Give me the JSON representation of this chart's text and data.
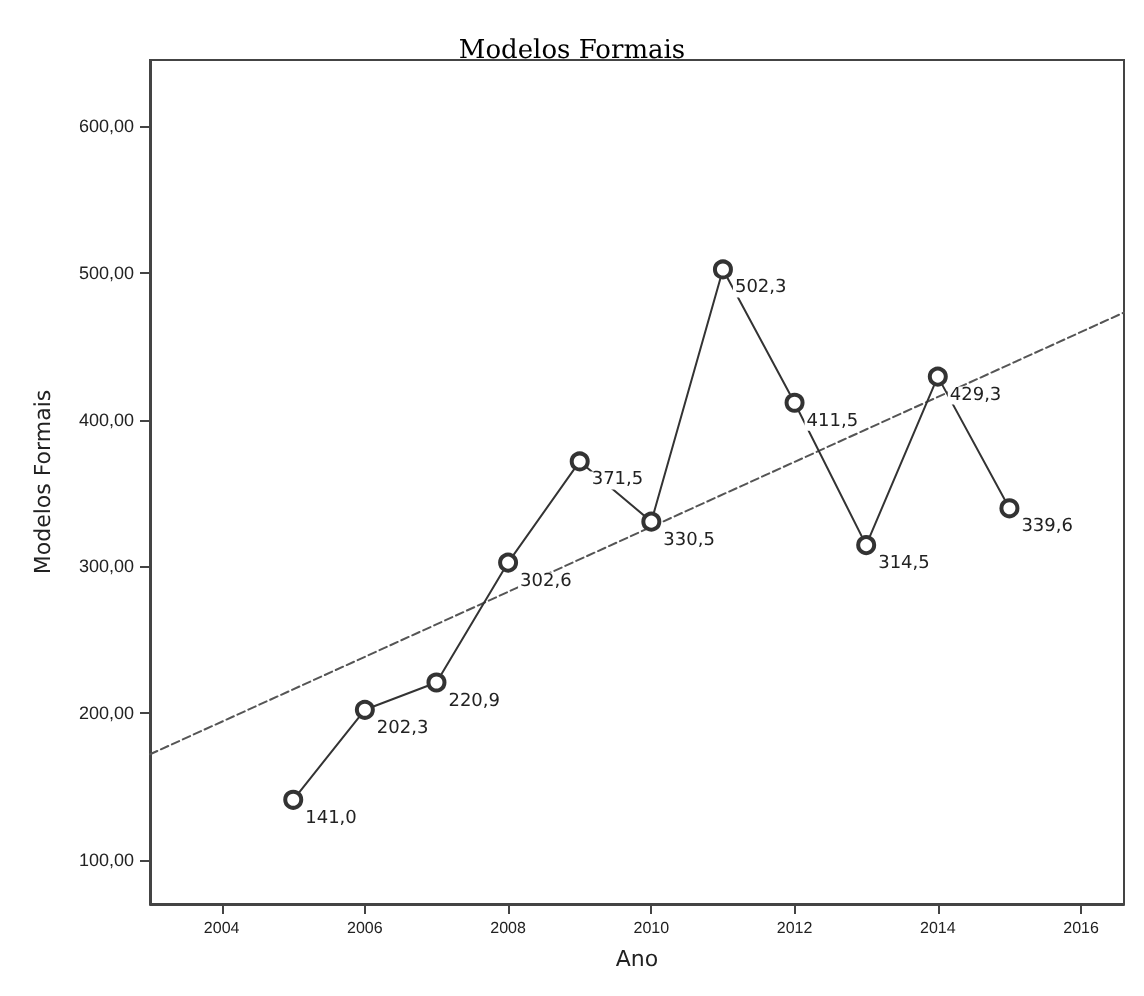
{
  "chart_data": {
    "type": "line",
    "title": "Modelos Formais",
    "xlabel": "Ano",
    "ylabel": "Modelos Formais",
    "x": [
      2005,
      2006,
      2007,
      2008,
      2009,
      2010,
      2011,
      2012,
      2013,
      2014,
      2015
    ],
    "series": [
      {
        "color": "#333333",
        "marker": "circle",
        "line_style": "solid",
        "values": [
          141.0,
          202.3,
          220.9,
          302.6,
          371.5,
          330.5,
          502.3,
          411.5,
          314.5,
          429.3,
          339.6
        ],
        "value_labels": [
          "141,0",
          "202,3",
          "220,9",
          "302,6",
          "371,5",
          "330,5",
          "502,3",
          "411,5",
          "314,5",
          "429,3",
          "339,6"
        ]
      },
      {
        "type": "line",
        "color": "#555555",
        "marker": "none",
        "line_style": "dashed",
        "x": [
          2003,
          2016.6
        ],
        "values": [
          172,
          473
        ]
      }
    ],
    "xlim": [
      2003,
      2016.6
    ],
    "xticks": [
      2004,
      2006,
      2008,
      2010,
      2012,
      2014,
      2016
    ],
    "ylim": [
      70,
      645
    ],
    "yticks": [
      {
        "value": 100,
        "label": "100,00"
      },
      {
        "value": 200,
        "label": "200,00"
      },
      {
        "value": 300,
        "label": "300,00"
      },
      {
        "value": 400,
        "label": "400,00"
      },
      {
        "value": 500,
        "label": "500,00"
      },
      {
        "value": 600,
        "label": "600,00"
      }
    ],
    "grid": false
  }
}
